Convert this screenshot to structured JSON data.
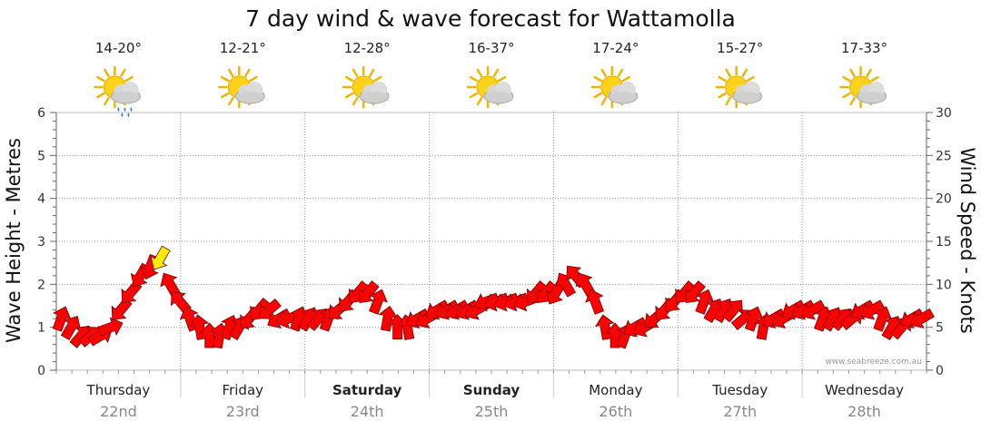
{
  "chart_data": {
    "type": "line",
    "title": "7 day wind & wave forecast for Wattamolla",
    "ylabel_left": "Wave Height - Metres",
    "ylabel_right": "Wind Speed - Knots",
    "ylim_left": [
      0,
      6
    ],
    "ylim_right": [
      0,
      30
    ],
    "yticks_left": [
      "0",
      "1",
      "2",
      "3",
      "4",
      "5",
      "6"
    ],
    "yticks_right": [
      "0",
      "5",
      "10",
      "15",
      "20",
      "25",
      "30"
    ],
    "grid": true,
    "watermark": "www.seabreeze.com.au",
    "days": [
      {
        "name": "Thursday",
        "date": "22nd",
        "bold": false,
        "temp": "14-20°",
        "icon": "sun-cloud-rain-icon"
      },
      {
        "name": "Friday",
        "date": "23rd",
        "bold": false,
        "temp": "12-21°",
        "icon": "sun-cloud-icon"
      },
      {
        "name": "Saturday",
        "date": "24th",
        "bold": true,
        "temp": "12-28°",
        "icon": "sun-cloud-icon"
      },
      {
        "name": "Sunday",
        "date": "25th",
        "bold": true,
        "temp": "16-37°",
        "icon": "sun-cloud-icon"
      },
      {
        "name": "Monday",
        "date": "26th",
        "bold": false,
        "temp": "17-24°",
        "icon": "sun-cloud-icon"
      },
      {
        "name": "Tuesday",
        "date": "27th",
        "bold": false,
        "temp": "15-27°",
        "icon": "sun-cloud-icon"
      },
      {
        "name": "Wednesday",
        "date": "28th",
        "bold": false,
        "temp": "17-33°",
        "icon": "sun-cloud-icon"
      }
    ],
    "wind_series": {
      "unit": "knots",
      "values": [
        6,
        5,
        4,
        4,
        4,
        5,
        7,
        9,
        11,
        12,
        13,
        10,
        8,
        6,
        5,
        4,
        4,
        5,
        5,
        6,
        7,
        7,
        6,
        6,
        6,
        6,
        6,
        6,
        7,
        8,
        9,
        9,
        8,
        6,
        5,
        5,
        6,
        6,
        7,
        7,
        7,
        7,
        7,
        8,
        8,
        8,
        8,
        8,
        9,
        9,
        9,
        10,
        11,
        10,
        8,
        5,
        4,
        4,
        5,
        5,
        6,
        7,
        8,
        9,
        9,
        8,
        7,
        7,
        7,
        6,
        6,
        5,
        6,
        6,
        7,
        7,
        7,
        6,
        6,
        6,
        6,
        7,
        7,
        6,
        5,
        5,
        6,
        6
      ],
      "gust_flags": [
        0,
        0,
        0,
        0,
        0,
        0,
        0,
        0,
        0,
        0,
        1,
        0,
        0,
        0,
        0,
        0,
        0,
        0,
        0,
        0,
        0,
        0,
        0,
        0,
        0,
        0,
        0,
        0,
        0,
        0,
        0,
        0,
        0,
        0,
        0,
        0,
        0,
        0,
        0,
        0,
        0,
        0,
        0,
        0,
        0,
        0,
        0,
        0,
        0,
        0,
        0,
        0,
        0,
        0,
        0,
        0,
        0,
        0,
        0,
        0,
        0,
        0,
        0,
        0,
        0,
        0,
        0,
        0,
        0,
        0,
        0,
        0,
        0,
        0,
        0,
        0,
        0,
        0,
        0,
        0,
        0,
        0,
        0,
        0,
        0,
        0,
        0,
        0
      ],
      "directions_deg": [
        200,
        210,
        220,
        230,
        240,
        250,
        40,
        40,
        30,
        20,
        30,
        150,
        140,
        160,
        170,
        180,
        190,
        200,
        210,
        40,
        40,
        50,
        60,
        70,
        200,
        210,
        220,
        200,
        50,
        40,
        40,
        40,
        200,
        190,
        180,
        170,
        60,
        60,
        60,
        60,
        60,
        60,
        60,
        70,
        70,
        70,
        70,
        70,
        40,
        40,
        30,
        150,
        140,
        150,
        160,
        170,
        180,
        200,
        60,
        60,
        50,
        40,
        40,
        40,
        40,
        200,
        210,
        210,
        220,
        230,
        200,
        190,
        60,
        60,
        60,
        60,
        60,
        200,
        210,
        220,
        230,
        60,
        60,
        200,
        210,
        220,
        60,
        60
      ]
    }
  }
}
